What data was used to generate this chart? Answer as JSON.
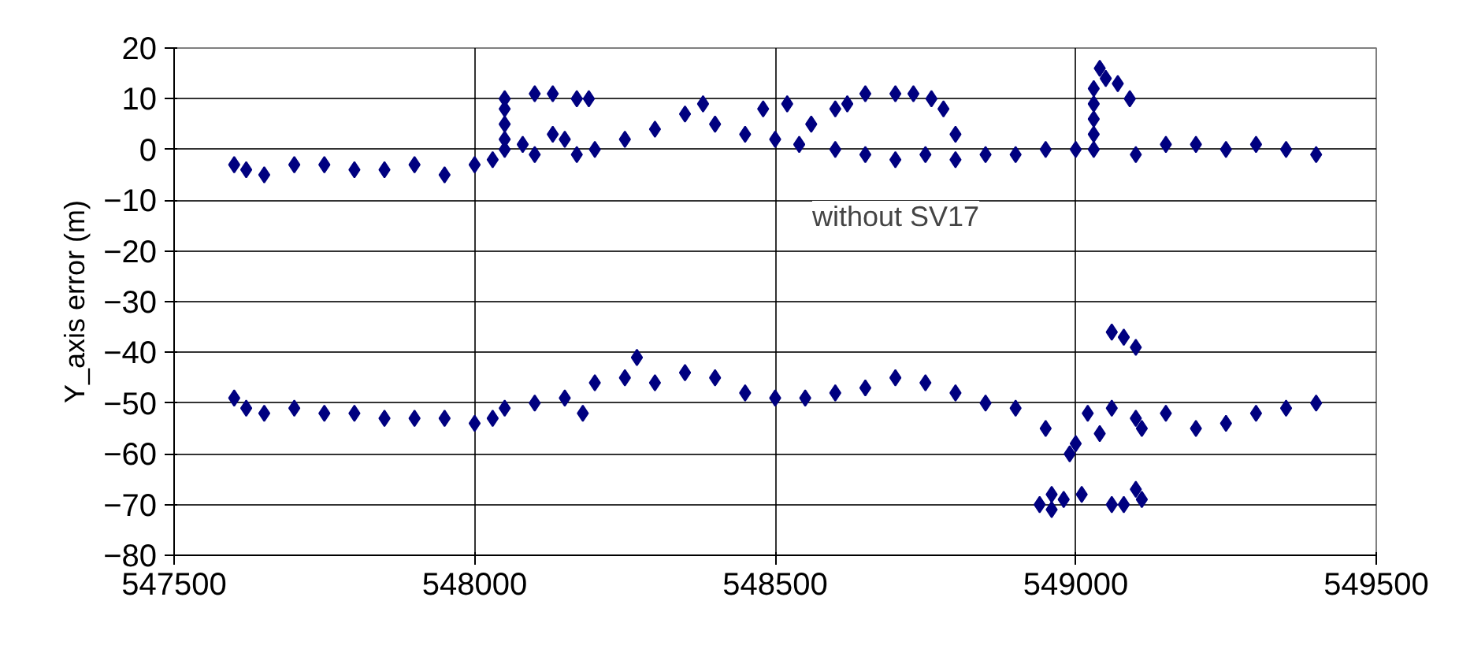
{
  "chart_data": {
    "type": "scatter",
    "ylabel": "Y_axis error (m)",
    "xlim": [
      547500,
      549500
    ],
    "xticks": [
      547500,
      548000,
      548500,
      549000,
      549500
    ],
    "ylim": [
      -80,
      20
    ],
    "yticks": [
      -80,
      -70,
      -60,
      -50,
      -40,
      -30,
      -20,
      -10,
      0,
      10,
      20
    ],
    "grid": true,
    "marker": "diamond",
    "annotations": [
      "without SV17"
    ],
    "series": [
      {
        "color": "#000080",
        "x": [
          547600,
          547620,
          547650,
          547700,
          547750,
          547800,
          547850,
          547900,
          547950,
          548000,
          548030,
          548050,
          548050,
          548050,
          548050,
          548050,
          548080,
          548100,
          548130,
          548150,
          548170,
          548190,
          548100,
          548130,
          548170,
          548200,
          548250,
          548300,
          548350,
          548380,
          548400,
          548450,
          548480,
          548500,
          548520,
          548540,
          548560,
          548600,
          548620,
          548650,
          548700,
          548730,
          548760,
          548780,
          548800,
          548600,
          548650,
          548700,
          548750,
          548800,
          548850,
          548900,
          548950,
          549000,
          549030,
          549030,
          549030,
          549030,
          549030,
          549040,
          549050,
          549070,
          549090,
          549100,
          549150,
          549200,
          549250,
          549300,
          549350,
          549400
        ],
        "values": [
          -3,
          -4,
          -5,
          -3,
          -3,
          -4,
          -4,
          -3,
          -5,
          -3,
          -2,
          10,
          8,
          5,
          2,
          0,
          1,
          11,
          11,
          2,
          10,
          10,
          -1,
          3,
          -1,
          0,
          2,
          4,
          7,
          9,
          5,
          3,
          8,
          2,
          9,
          1,
          5,
          8,
          9,
          11,
          11,
          11,
          10,
          8,
          3,
          0,
          -1,
          -2,
          -1,
          -2,
          -1,
          -1,
          0,
          0,
          0,
          3,
          6,
          9,
          12,
          16,
          14,
          13,
          10,
          -1,
          1,
          1,
          0,
          1,
          0,
          -1
        ]
      },
      {
        "color": "#000080",
        "x": [
          547600,
          547620,
          547650,
          547700,
          547750,
          547800,
          547850,
          547900,
          547950,
          548000,
          548030,
          548050,
          548100,
          548150,
          548180,
          548200,
          548250,
          548270,
          548300,
          548350,
          548400,
          548450,
          548500,
          548550,
          548600,
          548650,
          548700,
          548750,
          548800,
          548850,
          548900,
          548950,
          548990,
          549000,
          549020,
          549040,
          549060,
          549100,
          549150,
          549200,
          549250,
          549300,
          549350,
          549400,
          549060,
          549080,
          549100,
          549110,
          548940,
          548960,
          548960,
          548980,
          549010,
          549060,
          549080,
          549100,
          549110
        ],
        "values": [
          -49,
          -51,
          -52,
          -51,
          -52,
          -52,
          -53,
          -53,
          -53,
          -54,
          -53,
          -51,
          -50,
          -49,
          -52,
          -46,
          -45,
          -41,
          -46,
          -44,
          -45,
          -48,
          -49,
          -49,
          -48,
          -47,
          -45,
          -46,
          -48,
          -50,
          -51,
          -55,
          -60,
          -58,
          -52,
          -56,
          -51,
          -53,
          -52,
          -55,
          -54,
          -52,
          -51,
          -50,
          -36,
          -37,
          -39,
          -55,
          -70,
          -68,
          -71,
          -69,
          -68,
          -70,
          -70,
          -67,
          -69
        ]
      }
    ]
  }
}
